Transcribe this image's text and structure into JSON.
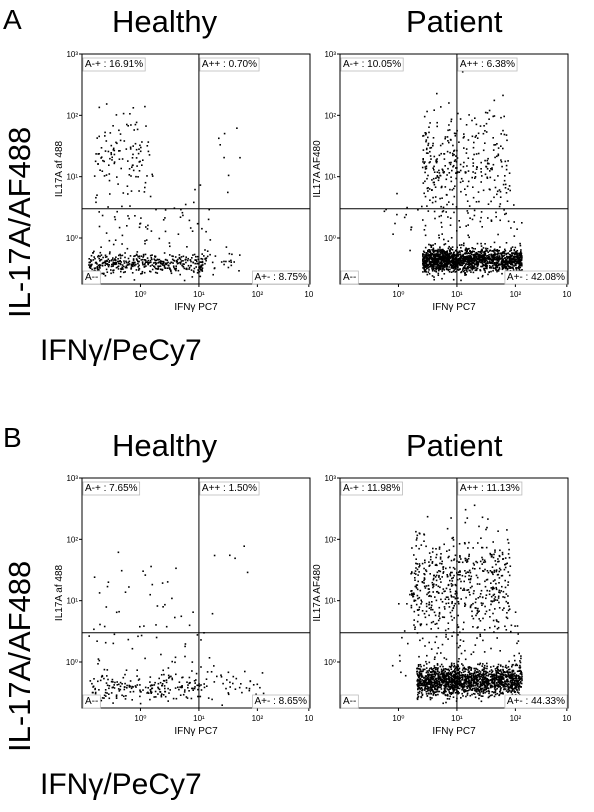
{
  "panels": [
    {
      "letter": "A",
      "y_axis_label": "IL-17A/AF488",
      "x_axis_label": "IFNγ/PeCy7"
    },
    {
      "letter": "B",
      "y_axis_label": "IL-17A/AF488",
      "x_axis_label": "IFNγ/PeCy7"
    }
  ],
  "chart_data": [
    {
      "type": "scatter",
      "panel": "A",
      "title": "Healthy",
      "xlabel": "IFNγ PC7",
      "ylabel": "IL17A af 488",
      "xscale": "log",
      "yscale": "log",
      "x_ticks": [
        "10⁰",
        "10¹",
        "10²",
        "10"
      ],
      "y_ticks": [
        "10³",
        "10²",
        "10¹",
        "10⁰"
      ],
      "quadrants": {
        "upper_left": "A-+ : 16.91%",
        "upper_right": "A++ : 0.70%",
        "lower_left": "A--",
        "lower_right": "A+- : 8.75%"
      },
      "gate": {
        "x": 10,
        "y": 3
      },
      "clusters": [
        {
          "label": "A--",
          "n": 430,
          "x_log": [
            -0.9,
            1.05
          ],
          "y_log_center": -0.4,
          "y_log_sd": 0.08
        },
        {
          "label": "A-+",
          "n": 120,
          "x_log": [
            -0.8,
            0.2
          ],
          "y_log_center": 1.3,
          "y_log_sd": 0.35
        },
        {
          "label": "scatter",
          "n": 60,
          "x_log": [
            -0.9,
            1.2
          ],
          "y_log_center": 0.2,
          "y_log_sd": 0.25
        },
        {
          "label": "A++",
          "n": 8,
          "x_log": [
            1.2,
            1.9
          ],
          "y_log_center": 1.4,
          "y_log_sd": 0.4
        },
        {
          "label": "A+-",
          "n": 35,
          "x_log": [
            1.0,
            1.7
          ],
          "y_log_center": -0.35,
          "y_log_sd": 0.12
        }
      ]
    },
    {
      "type": "scatter",
      "panel": "A",
      "title": "Patient",
      "xlabel": "IFNγ PC7",
      "ylabel": "IL17A AF480",
      "xscale": "log",
      "yscale": "log",
      "x_ticks": [
        "10⁰",
        "10¹",
        "10²",
        "10"
      ],
      "y_ticks": [
        "10³",
        "10²",
        "10¹",
        "10⁰"
      ],
      "quadrants": {
        "upper_left": "A-+ : 10.05%",
        "upper_right": "A++ : 6.38%",
        "lower_left": "A--",
        "lower_right": "A+- : 42.08%"
      },
      "gate": {
        "x": 10,
        "y": 3
      },
      "clusters": [
        {
          "label": "A--",
          "n": 700,
          "x_log": [
            0.4,
            1.0
          ],
          "y_log_center": -0.35,
          "y_log_sd": 0.1
        },
        {
          "label": "A+-",
          "n": 900,
          "x_log": [
            1.0,
            2.1
          ],
          "y_log_center": -0.35,
          "y_log_sd": 0.1
        },
        {
          "label": "A-+",
          "n": 180,
          "x_log": [
            0.4,
            1.0
          ],
          "y_log_center": 1.2,
          "y_log_sd": 0.45
        },
        {
          "label": "A++",
          "n": 160,
          "x_log": [
            1.0,
            1.9
          ],
          "y_log_center": 1.2,
          "y_log_sd": 0.45
        },
        {
          "label": "scatter",
          "n": 70,
          "x_log": [
            -0.3,
            2.1
          ],
          "y_log_center": 0.3,
          "y_log_sd": 0.3
        }
      ]
    },
    {
      "type": "scatter",
      "panel": "B",
      "title": "Healthy",
      "xlabel": "IFNγ PC7",
      "ylabel": "IL17A af 488",
      "xscale": "log",
      "yscale": "log",
      "x_ticks": [
        "10⁰",
        "10¹",
        "10²",
        "10"
      ],
      "y_ticks": [
        "10³",
        "10²",
        "10¹",
        "10⁰"
      ],
      "quadrants": {
        "upper_left": "A-+ : 7.65%",
        "upper_right": "A++ : 1.50%",
        "lower_left": "A--",
        "lower_right": "A+- : 8.65%"
      },
      "gate": {
        "x": 10,
        "y": 3
      },
      "clusters": [
        {
          "label": "A--",
          "n": 200,
          "x_log": [
            -0.9,
            1.0
          ],
          "y_log_center": -0.4,
          "y_log_sd": 0.12
        },
        {
          "label": "A-+",
          "n": 25,
          "x_log": [
            -0.9,
            0.6
          ],
          "y_log_center": 1.2,
          "y_log_sd": 0.35
        },
        {
          "label": "scatter",
          "n": 45,
          "x_log": [
            -0.9,
            1.2
          ],
          "y_log_center": 0.2,
          "y_log_sd": 0.3
        },
        {
          "label": "A++",
          "n": 6,
          "x_log": [
            1.1,
            1.9
          ],
          "y_log_center": 1.4,
          "y_log_sd": 0.3
        },
        {
          "label": "A+-",
          "n": 45,
          "x_log": [
            1.0,
            2.1
          ],
          "y_log_center": -0.35,
          "y_log_sd": 0.15
        }
      ]
    },
    {
      "type": "scatter",
      "panel": "B",
      "title": "Patient",
      "xlabel": "IFNγ PC7",
      "ylabel": "IL17A AF480",
      "xscale": "log",
      "yscale": "log",
      "x_ticks": [
        "10⁰",
        "10¹",
        "10²",
        "10"
      ],
      "y_ticks": [
        "10³",
        "10²",
        "10¹",
        "10⁰"
      ],
      "quadrants": {
        "upper_left": "A-+ : 11.98%",
        "upper_right": "A++ : 11.13%",
        "lower_left": "A--",
        "lower_right": "A+- : 44.33%"
      },
      "gate": {
        "x": 10,
        "y": 3
      },
      "clusters": [
        {
          "label": "A--",
          "n": 700,
          "x_log": [
            0.3,
            1.0
          ],
          "y_log_center": -0.3,
          "y_log_sd": 0.12
        },
        {
          "label": "A+-",
          "n": 900,
          "x_log": [
            1.0,
            2.1
          ],
          "y_log_center": -0.3,
          "y_log_sd": 0.12
        },
        {
          "label": "A-+",
          "n": 280,
          "x_log": [
            0.2,
            1.0
          ],
          "y_log_center": 1.3,
          "y_log_sd": 0.45
        },
        {
          "label": "A++",
          "n": 280,
          "x_log": [
            1.0,
            1.9
          ],
          "y_log_center": 1.3,
          "y_log_sd": 0.45
        },
        {
          "label": "scatter",
          "n": 80,
          "x_log": [
            -0.2,
            2.1
          ],
          "y_log_center": 0.4,
          "y_log_sd": 0.35
        }
      ]
    }
  ]
}
